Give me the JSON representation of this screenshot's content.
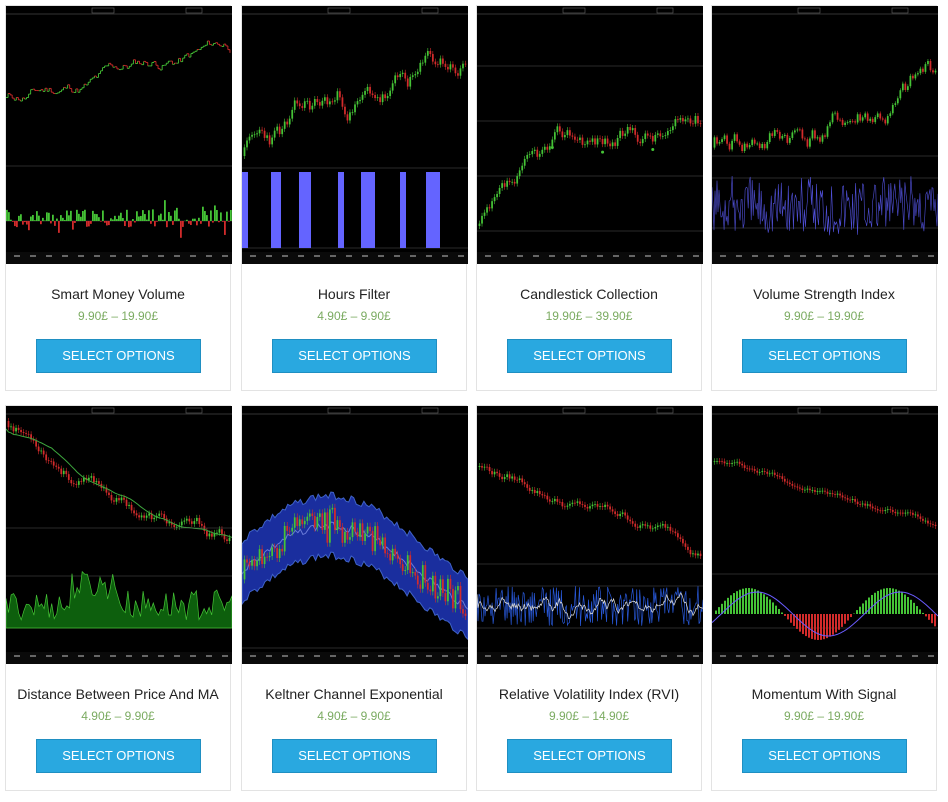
{
  "colors": {
    "price": "#7bab61",
    "button": "#29a8e0",
    "up": "#45c336",
    "down": "#d22b2b"
  },
  "products": [
    {
      "title": "Smart Money Volume",
      "price": "9.90£ – 19.90£",
      "button": "SELECT OPTIONS",
      "chart": "smartmoney"
    },
    {
      "title": "Hours Filter",
      "price": "4.90£ – 9.90£",
      "button": "SELECT OPTIONS",
      "chart": "hours"
    },
    {
      "title": "Candlestick Collection",
      "price": "19.90£ – 39.90£",
      "button": "SELECT OPTIONS",
      "chart": "candles"
    },
    {
      "title": "Volume Strength Index",
      "price": "9.90£ – 19.90£",
      "button": "SELECT OPTIONS",
      "chart": "volstrength"
    },
    {
      "title": "Distance Between Price And MA",
      "price": "4.90£ – 9.90£",
      "button": "SELECT OPTIONS",
      "chart": "distance"
    },
    {
      "title": "Keltner Channel Exponential",
      "price": "4.90£ – 9.90£",
      "button": "SELECT OPTIONS",
      "chart": "keltner"
    },
    {
      "title": "Relative Volatility Index (RVI)",
      "price": "9.90£ – 14.90£",
      "button": "SELECT OPTIONS",
      "chart": "rvi"
    },
    {
      "title": "Momentum With Signal",
      "price": "9.90£ – 19.90£",
      "button": "SELECT OPTIONS",
      "chart": "momentum"
    }
  ]
}
